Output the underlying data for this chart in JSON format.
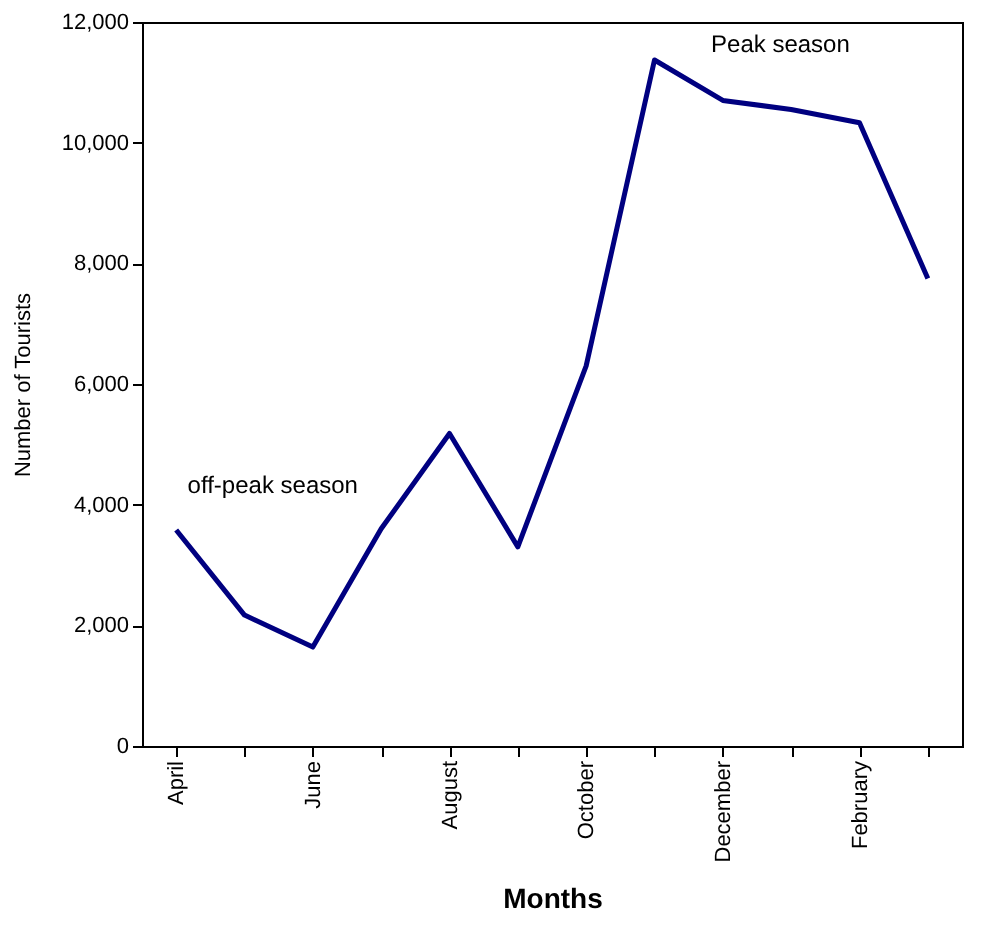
{
  "chart_data": {
    "type": "line",
    "xlabel": "Months",
    "ylabel": "Number of Tourists",
    "categories": [
      "April",
      null,
      "June",
      null,
      "August",
      null,
      "October",
      null,
      "December",
      null,
      "February",
      null
    ],
    "series": [
      {
        "color": "#000080",
        "values": [
          3580,
          2170,
          1640,
          3600,
          5180,
          3300,
          6300,
          11370,
          10700,
          10550,
          10330,
          7750
        ]
      }
    ],
    "ylim": [
      0,
      12000
    ],
    "yticks": [
      {
        "value": 0,
        "label": "0"
      },
      {
        "value": 2000,
        "label": "2,000"
      },
      {
        "value": 4000,
        "label": "4,000"
      },
      {
        "value": 6000,
        "label": "6,000"
      },
      {
        "value": 8000,
        "label": "8,000"
      },
      {
        "value": 10000,
        "label": "10,000"
      },
      {
        "value": 12000,
        "label": "12,000"
      }
    ],
    "annotations": [
      "off-peak season",
      "Peak season"
    ],
    "grid": false,
    "marker": "none",
    "line_style": "solid"
  }
}
